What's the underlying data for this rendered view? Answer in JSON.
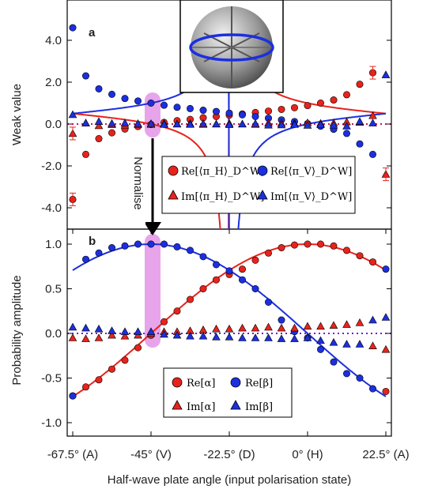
{
  "chart_data": [
    {
      "panel": "a",
      "type": "scatter",
      "ylabel": "Weak value",
      "yticks": [
        "4.0",
        "2.0",
        "0.0",
        "-2.0",
        "-4.0"
      ],
      "ytick_values": [
        4,
        2,
        0,
        -2,
        -4
      ],
      "ylim": [
        -4.9,
        4.9
      ],
      "xlim": [
        -67.5,
        22.5
      ],
      "legend": {
        "position": "lower-right",
        "columns": 2
      },
      "colors": {
        "red": "#e8231c",
        "blue": "#1c2fe0"
      },
      "annotation_arrow": "Normalise",
      "series": [
        {
          "name": "Re[⟨π_H⟩_D^W]",
          "marker": "circle",
          "color": "#e8231c",
          "x": [
            -67.5,
            -63.75,
            -60,
            -56.25,
            -52.5,
            -48.75,
            -45,
            -41.25,
            -37.5,
            -33.75,
            -30,
            -26.25,
            -22.5,
            -18.75,
            -15,
            -11.25,
            -7.5,
            -3.75,
            0,
            3.75,
            7.5,
            11.25,
            15,
            18.75
          ],
          "y": [
            -3.6,
            -1.45,
            -0.7,
            -0.42,
            -0.24,
            -0.12,
            -0.02,
            0.08,
            0.16,
            0.22,
            0.3,
            0.36,
            0.42,
            0.48,
            0.55,
            0.62,
            0.7,
            0.78,
            0.88,
            1.0,
            1.15,
            1.4,
            1.9,
            2.45
          ]
        },
        {
          "name": "Re[⟨π_V⟩_D^W]",
          "marker": "circle",
          "color": "#1c2fe0",
          "x": [
            -67.5,
            -63.75,
            -60,
            -56.25,
            -52.5,
            -48.75,
            -45,
            -41.25,
            -37.5,
            -33.75,
            -30,
            -26.25,
            -22.5,
            -18.75,
            -15,
            -11.25,
            -7.5,
            -3.75,
            0,
            3.75,
            7.5,
            11.25,
            15,
            18.75
          ],
          "y": [
            4.6,
            2.3,
            1.68,
            1.42,
            1.22,
            1.1,
            1.0,
            0.9,
            0.8,
            0.74,
            0.66,
            0.6,
            0.52,
            0.44,
            0.36,
            0.28,
            0.2,
            0.12,
            0.02,
            -0.1,
            -0.25,
            -0.45,
            -0.95,
            -1.45
          ]
        },
        {
          "name": "Im[⟨π_H⟩_D^W]",
          "marker": "triangle",
          "color": "#e8231c",
          "x": [
            -67.5,
            -63.75,
            -60,
            -56.25,
            -52.5,
            -48.75,
            -45,
            -41.25,
            -37.5,
            -33.75,
            -30,
            -26.25,
            -22.5,
            -18.75,
            -15,
            -11.25,
            -7.5,
            -3.75,
            0,
            3.75,
            7.5,
            11.25,
            15,
            18.75,
            22.5
          ],
          "y": [
            -0.45,
            0.05,
            -0.08,
            -0.03,
            -0.05,
            -0.02,
            -0.02,
            0.02,
            0.0,
            0.02,
            -0.02,
            0.0,
            0.03,
            0.0,
            -0.02,
            0.05,
            0.04,
            0.02,
            0.06,
            0.03,
            0.05,
            0.1,
            0.08,
            0.4,
            -2.4
          ]
        },
        {
          "name": "Im[⟨π_V⟩_D^W]",
          "marker": "triangle",
          "color": "#1c2fe0",
          "x": [
            -67.5,
            -63.75,
            -60,
            -56.25,
            -52.5,
            -48.75,
            -45,
            -41.25,
            -37.5,
            -33.75,
            -30,
            -26.25,
            -22.5,
            -18.75,
            -15,
            -11.25,
            -7.5,
            -3.75,
            0,
            3.75,
            7.5,
            11.25,
            15,
            18.75,
            22.5
          ],
          "y": [
            0.45,
            0.05,
            0.12,
            0.03,
            0.05,
            0.02,
            0.02,
            -0.02,
            0.0,
            -0.02,
            0.02,
            0.0,
            -0.03,
            0.0,
            0.02,
            -0.05,
            -0.04,
            -0.02,
            -0.06,
            -0.03,
            -0.05,
            -0.1,
            0.12,
            0.05,
            2.35
          ]
        }
      ]
    },
    {
      "panel": "b",
      "type": "scatter",
      "ylabel": "Probability amplitude",
      "xlabel": "Half-wave plate angle (input polarisation state)",
      "yticks": [
        "1.0",
        "0.5",
        "0.0",
        "-0.5",
        "-1.0"
      ],
      "ytick_values": [
        1,
        0.5,
        0,
        -0.5,
        -1
      ],
      "ylim": [
        -1.2,
        1.12
      ],
      "xlim": [
        -67.5,
        22.5
      ],
      "xticks": [
        "-67.5° (A)",
        "-45° (V)",
        "-22.5° (D)",
        "0° (H)",
        "22.5° (A)"
      ],
      "xtick_values": [
        -67.5,
        -45,
        -22.5,
        0,
        22.5
      ],
      "legend": {
        "position": "lower-center",
        "columns": 2
      },
      "series": [
        {
          "name": "Re[α]",
          "marker": "circle",
          "color": "#e8231c",
          "x": [
            -67.5,
            -63.75,
            -60,
            -56.25,
            -52.5,
            -48.75,
            -45,
            -41.25,
            -37.5,
            -33.75,
            -30,
            -26.25,
            -22.5,
            -18.75,
            -15,
            -11.25,
            -7.5,
            -3.75,
            0,
            3.75,
            7.5,
            11.25,
            15,
            18.75,
            22.5
          ],
          "y": [
            -0.7,
            -0.6,
            -0.52,
            -0.4,
            -0.3,
            -0.16,
            -0.02,
            0.13,
            0.25,
            0.38,
            0.5,
            0.6,
            0.66,
            0.72,
            0.82,
            0.9,
            0.96,
            0.99,
            1.0,
            1.0,
            0.98,
            0.93,
            0.87,
            0.8,
            -0.65
          ]
        },
        {
          "name": "Re[β]",
          "marker": "circle",
          "color": "#1c2fe0",
          "x": [
            -67.5,
            -63.75,
            -60,
            -56.25,
            -52.5,
            -48.75,
            -45,
            -41.25,
            -37.5,
            -33.75,
            -30,
            -26.25,
            -22.5,
            -18.75,
            -15,
            -11.25,
            -7.5,
            -3.75,
            0,
            3.75,
            7.5,
            11.25,
            15,
            18.75,
            22.5
          ],
          "y": [
            -0.7,
            0.83,
            0.9,
            0.96,
            0.98,
            1.0,
            1.0,
            1.0,
            0.97,
            0.93,
            0.86,
            0.77,
            0.7,
            0.6,
            0.5,
            0.35,
            0.15,
            0.02,
            -0.05,
            -0.18,
            -0.32,
            -0.45,
            -0.5,
            -0.62,
            0.72
          ]
        },
        {
          "name": "Im[α]",
          "marker": "triangle",
          "color": "#e8231c",
          "x": [
            -67.5,
            -63.75,
            -60,
            -56.25,
            -52.5,
            -48.75,
            -45,
            -41.25,
            -37.5,
            -33.75,
            -30,
            -26.25,
            -22.5,
            -18.75,
            -15,
            -11.25,
            -7.5,
            -3.75,
            0,
            3.75,
            7.5,
            11.25,
            15,
            18.75,
            22.5
          ],
          "y": [
            -0.05,
            -0.06,
            -0.05,
            -0.02,
            -0.03,
            -0.02,
            0.0,
            0.02,
            0.02,
            0.03,
            0.04,
            0.05,
            0.05,
            0.06,
            0.06,
            0.07,
            0.06,
            0.06,
            0.08,
            0.08,
            0.09,
            0.1,
            0.12,
            -0.14,
            -0.18
          ]
        },
        {
          "name": "Im[β]",
          "marker": "triangle",
          "color": "#1c2fe0",
          "x": [
            -67.5,
            -63.75,
            -60,
            -56.25,
            -52.5,
            -48.75,
            -45,
            -41.25,
            -37.5,
            -33.75,
            -30,
            -26.25,
            -22.5,
            -18.75,
            -15,
            -11.25,
            -7.5,
            -3.75,
            0,
            3.75,
            7.5,
            11.25,
            15,
            18.75,
            22.5
          ],
          "y": [
            0.07,
            0.06,
            0.05,
            0.03,
            0.02,
            0.02,
            0.02,
            -0.01,
            -0.02,
            -0.03,
            -0.03,
            -0.04,
            -0.04,
            -0.05,
            -0.05,
            -0.05,
            -0.06,
            -0.06,
            -0.05,
            -0.08,
            -0.1,
            -0.12,
            -0.12,
            0.15,
            0.18
          ]
        }
      ]
    }
  ],
  "labels": {
    "panel_a": "a",
    "panel_b": "b",
    "ylabel_a": "Weak value",
    "ylabel_b": "Probability amplitude",
    "xlabel": "Half-wave plate angle (input polarisation state)",
    "arrow_text": "Normalise"
  },
  "legend_a": {
    "re_h": "Re[⟨π_H⟩_D^W]",
    "re_v": "Re[⟨π_V⟩_D^W]",
    "im_h": "Im[⟨π_H⟩_D^W]",
    "im_v": "Im[⟨π_V⟩_D^W]"
  },
  "legend_b": {
    "re_a": "Re[α]",
    "re_b": "Re[β]",
    "im_a": "Im[α]",
    "im_b": "Im[β]"
  },
  "icons": [
    "bloch-sphere-icon",
    "down-arrow-icon"
  ]
}
